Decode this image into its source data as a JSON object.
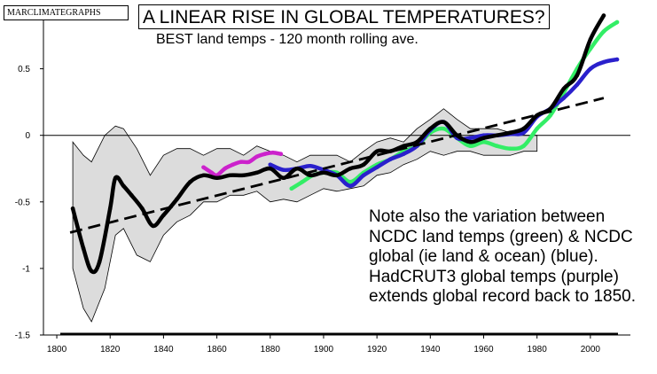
{
  "brand": "MARCLIMATEGRAPHS",
  "title": "A LINEAR RISE IN GLOBAL TEMPERATURES?",
  "subtitle": "BEST land temps - 120 month rolling ave.",
  "note": "Note also the variation between NCDC land temps (green) & NCDC global (ie land & ocean) (blue). HadCRUT3 global temps (purple) extends global record back to 1850.",
  "chart_data": {
    "type": "line",
    "title": "A LINEAR RISE IN GLOBAL TEMPERATURES?",
    "subtitle": "BEST land temps - 120 month rolling ave.",
    "xlabel": "",
    "ylabel": "",
    "xlim": [
      1795,
      2015
    ],
    "ylim": [
      -1.5,
      0.95
    ],
    "x_ticks": [
      1800,
      1820,
      1840,
      1860,
      1880,
      1900,
      1920,
      1940,
      1960,
      1980,
      2000
    ],
    "y_ticks": [
      {
        "value": 0.5,
        "label": "0.5"
      },
      {
        "value": 0,
        "label": "0"
      },
      {
        "value": -0.5,
        "label": "-0.5"
      },
      {
        "value": -1,
        "label": "-1"
      },
      {
        "value": -1.5,
        "label": "-1.5"
      }
    ],
    "zero_line": true,
    "grid": false,
    "uncertainty_band": {
      "x": [
        1806,
        1810,
        1813,
        1818,
        1822,
        1825,
        1830,
        1835,
        1840,
        1845,
        1850,
        1855,
        1860,
        1865,
        1870,
        1875,
        1880,
        1885,
        1890,
        1895,
        1900,
        1905,
        1910,
        1915,
        1920,
        1925,
        1930,
        1935,
        1940,
        1945,
        1950,
        1955,
        1960,
        1965,
        1970,
        1975,
        1980
      ],
      "upper": [
        -0.05,
        -0.15,
        -0.2,
        0.0,
        0.07,
        0.05,
        -0.1,
        -0.3,
        -0.15,
        -0.1,
        -0.1,
        -0.15,
        -0.1,
        -0.1,
        -0.15,
        -0.08,
        -0.12,
        -0.15,
        -0.2,
        -0.15,
        -0.15,
        -0.15,
        -0.2,
        -0.12,
        -0.05,
        -0.02,
        -0.05,
        0.05,
        0.12,
        0.2,
        0.12,
        0.05,
        0.05,
        0.05,
        0.02,
        0.0,
        0.0
      ],
      "lower": [
        -1.0,
        -1.3,
        -1.4,
        -1.15,
        -0.75,
        -0.7,
        -0.9,
        -0.95,
        -0.75,
        -0.65,
        -0.6,
        -0.5,
        -0.5,
        -0.45,
        -0.45,
        -0.42,
        -0.5,
        -0.48,
        -0.5,
        -0.45,
        -0.4,
        -0.42,
        -0.4,
        -0.38,
        -0.3,
        -0.28,
        -0.22,
        -0.18,
        -0.12,
        -0.15,
        -0.12,
        -0.12,
        -0.15,
        -0.15,
        -0.15,
        -0.12,
        -0.12
      ]
    },
    "trend": {
      "name": "",
      "x": [
        1805,
        2005
      ],
      "y": [
        -0.73,
        0.28
      ]
    },
    "series": [
      {
        "name": "BEST land",
        "color": "#000000",
        "x": [
          1806,
          1810,
          1813,
          1816,
          1820,
          1822,
          1825,
          1828,
          1832,
          1836,
          1840,
          1845,
          1850,
          1855,
          1860,
          1865,
          1870,
          1875,
          1880,
          1885,
          1890,
          1895,
          1900,
          1905,
          1910,
          1915,
          1920,
          1925,
          1930,
          1935,
          1940,
          1945,
          1950,
          1955,
          1960,
          1965,
          1970,
          1975,
          1980,
          1985,
          1990,
          1995,
          2000,
          2005
        ],
        "y": [
          -0.55,
          -0.85,
          -1.02,
          -0.95,
          -0.55,
          -0.32,
          -0.38,
          -0.45,
          -0.55,
          -0.68,
          -0.6,
          -0.48,
          -0.35,
          -0.3,
          -0.32,
          -0.3,
          -0.3,
          -0.28,
          -0.25,
          -0.32,
          -0.25,
          -0.3,
          -0.28,
          -0.3,
          -0.25,
          -0.22,
          -0.12,
          -0.12,
          -0.08,
          -0.05,
          0.05,
          0.1,
          0.0,
          -0.05,
          -0.02,
          0.0,
          0.02,
          0.05,
          0.15,
          0.2,
          0.35,
          0.45,
          0.72,
          0.9
        ]
      },
      {
        "name": "NCDC land temps",
        "color": "#33ee66",
        "x": [
          1888,
          1892,
          1896,
          1900,
          1905,
          1910,
          1915,
          1920,
          1925,
          1930,
          1935,
          1940,
          1945,
          1950,
          1955,
          1960,
          1965,
          1970,
          1975,
          1980,
          1985,
          1990,
          1995,
          2000,
          2005,
          2010
        ],
        "y": [
          -0.4,
          -0.35,
          -0.3,
          -0.28,
          -0.28,
          -0.35,
          -0.28,
          -0.22,
          -0.18,
          -0.12,
          -0.08,
          0.02,
          0.05,
          -0.02,
          -0.08,
          -0.05,
          -0.08,
          -0.1,
          -0.08,
          0.05,
          0.15,
          0.32,
          0.5,
          0.65,
          0.78,
          0.85
        ]
      },
      {
        "name": "NCDC global",
        "color": "#2a20cc",
        "x": [
          1880,
          1885,
          1890,
          1895,
          1900,
          1905,
          1910,
          1915,
          1920,
          1925,
          1930,
          1935,
          1940,
          1945,
          1950,
          1955,
          1960,
          1965,
          1970,
          1975,
          1980,
          1985,
          1990,
          1995,
          2000,
          2005,
          2010
        ],
        "y": [
          -0.22,
          -0.26,
          -0.25,
          -0.23,
          -0.26,
          -0.3,
          -0.38,
          -0.3,
          -0.24,
          -0.18,
          -0.14,
          -0.08,
          0.04,
          0.1,
          -0.02,
          -0.02,
          0.0,
          0.0,
          0.01,
          0.02,
          0.14,
          0.2,
          0.28,
          0.38,
          0.5,
          0.55,
          0.57
        ]
      },
      {
        "name": "HadCRUT3 global temps",
        "color": "#cc22cc",
        "x": [
          1855,
          1858,
          1860,
          1863,
          1866,
          1869,
          1872,
          1875,
          1878,
          1881,
          1884
        ],
        "y": [
          -0.24,
          -0.28,
          -0.3,
          -0.25,
          -0.22,
          -0.2,
          -0.2,
          -0.16,
          -0.14,
          -0.13,
          -0.14
        ]
      }
    ]
  }
}
